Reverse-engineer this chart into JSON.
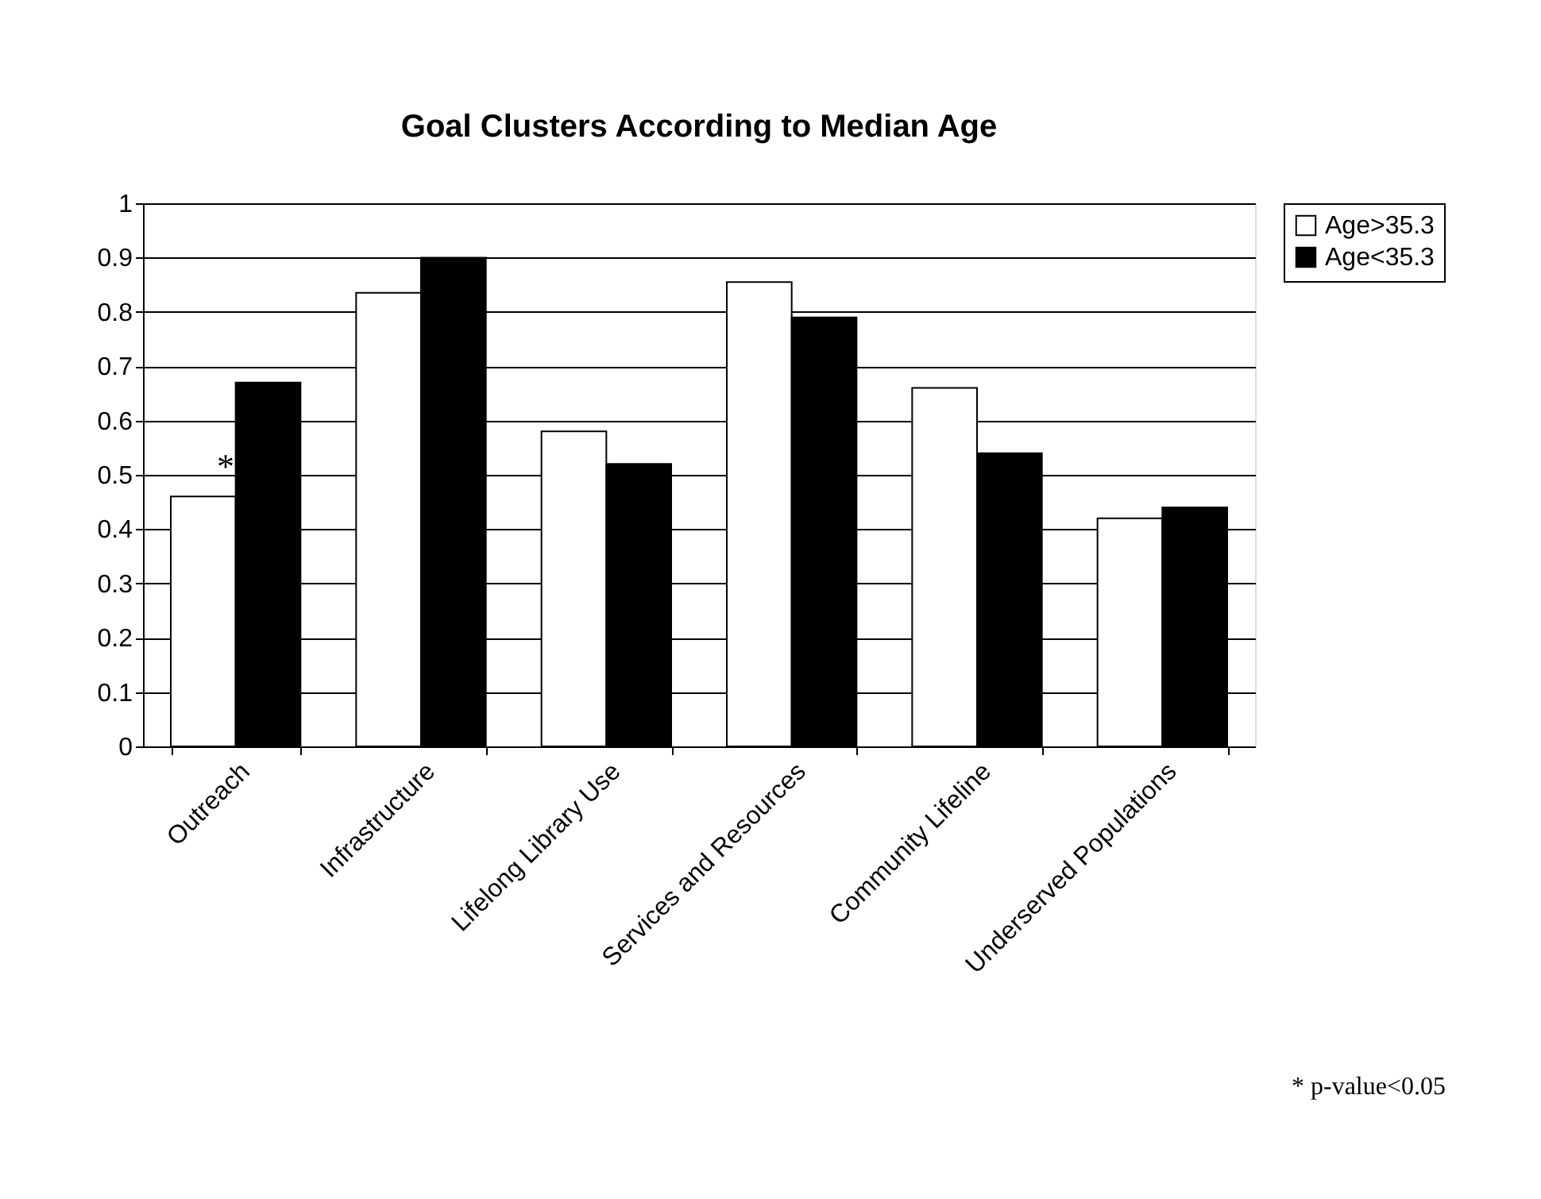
{
  "chart_data": {
    "type": "bar",
    "title": "Goal Clusters According to Median Age",
    "categories": [
      "Outreach",
      "Infrastructure",
      "Lifelong Library Use",
      "Services and Resources",
      "Community Lifeline",
      "Underserved Populations"
    ],
    "series": [
      {
        "name": "Age>35.3",
        "color": "#ffffff",
        "values": [
          0.46,
          0.835,
          0.58,
          0.855,
          0.66,
          0.42
        ]
      },
      {
        "name": "Age<35.3",
        "color": "#000000",
        "values": [
          0.67,
          0.9,
          0.52,
          0.79,
          0.54,
          0.44
        ]
      }
    ],
    "ylim": [
      0,
      1
    ],
    "yticks": [
      0,
      0.1,
      0.2,
      0.3,
      0.4,
      0.5,
      0.6,
      0.7,
      0.8,
      0.9,
      1
    ],
    "grid": "y",
    "legend": "right",
    "annotations": [
      "*",
      "* p-value<0.05"
    ]
  }
}
